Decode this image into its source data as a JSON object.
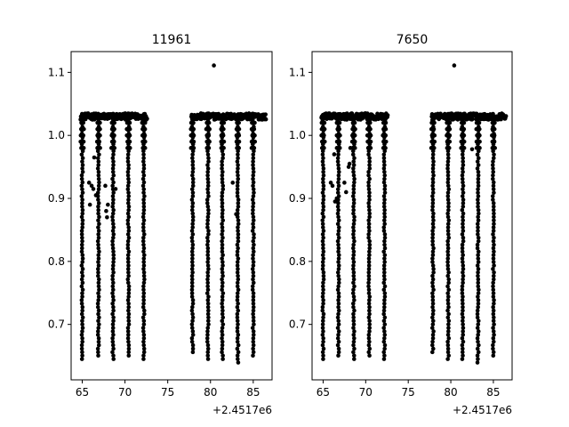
{
  "chart_data": [
    {
      "type": "scatter",
      "title": "11961",
      "offset_text": "+2.4517e6",
      "x_offset": 2451700,
      "xlim": [
        63.7,
        87.2
      ],
      "ylim": [
        0.612,
        1.133
      ],
      "xticks": [
        65,
        70,
        75,
        80,
        85
      ],
      "xtick_labels": [
        "65",
        "70",
        "75",
        "80",
        "85"
      ],
      "yticks": [
        0.7,
        0.8,
        0.9,
        1.0,
        1.1
      ],
      "ytick_labels": [
        "0.7",
        "0.8",
        "0.9",
        "1.0",
        "1.1"
      ],
      "marker_color": "#000000",
      "baseline_flux": 1.03,
      "segments": [
        [
          64.8,
          72.6
        ],
        [
          77.8,
          86.5
        ]
      ],
      "eclipses": [
        {
          "x": 65.0,
          "min": 0.643
        },
        {
          "x": 66.9,
          "min": 0.648
        },
        {
          "x": 68.6,
          "min": 0.642
        },
        {
          "x": 70.4,
          "min": 0.648
        },
        {
          "x": 72.2,
          "min": 0.64
        },
        {
          "x": 77.9,
          "min": 0.655
        },
        {
          "x": 79.7,
          "min": 0.64
        },
        {
          "x": 81.4,
          "min": 0.643
        },
        {
          "x": 83.2,
          "min": 0.637
        },
        {
          "x": 85.0,
          "min": 0.647
        }
      ],
      "extra_points": [
        {
          "x": 80.4,
          "y": 1.111
        },
        {
          "x": 65.8,
          "y": 0.925
        },
        {
          "x": 66.1,
          "y": 0.92
        },
        {
          "x": 66.3,
          "y": 0.915
        },
        {
          "x": 65.9,
          "y": 0.89
        },
        {
          "x": 66.4,
          "y": 0.965
        },
        {
          "x": 66.6,
          "y": 0.905
        },
        {
          "x": 67.7,
          "y": 0.92
        },
        {
          "x": 67.9,
          "y": 0.87
        },
        {
          "x": 68.0,
          "y": 0.89
        },
        {
          "x": 67.8,
          "y": 0.88
        },
        {
          "x": 82.6,
          "y": 0.925
        },
        {
          "x": 83.0,
          "y": 0.875
        },
        {
          "x": 68.9,
          "y": 0.915
        }
      ]
    },
    {
      "type": "scatter",
      "title": "7650",
      "offset_text": "+2.4517e6",
      "x_offset": 2451700,
      "xlim": [
        63.7,
        87.2
      ],
      "ylim": [
        0.612,
        1.133
      ],
      "xticks": [
        65,
        70,
        75,
        80,
        85
      ],
      "xtick_labels": [
        "65",
        "70",
        "75",
        "80",
        "85"
      ],
      "yticks": [
        0.7,
        0.8,
        0.9,
        1.0,
        1.1
      ],
      "ytick_labels": [
        "0.7",
        "0.8",
        "0.9",
        "1.0",
        "1.1"
      ],
      "marker_color": "#000000",
      "baseline_flux": 1.03,
      "segments": [
        [
          64.8,
          72.6
        ],
        [
          77.8,
          86.5
        ]
      ],
      "eclipses": [
        {
          "x": 65.0,
          "min": 0.643
        },
        {
          "x": 66.8,
          "min": 0.648
        },
        {
          "x": 68.6,
          "min": 0.642
        },
        {
          "x": 70.4,
          "min": 0.647
        },
        {
          "x": 72.2,
          "min": 0.64
        },
        {
          "x": 77.9,
          "min": 0.655
        },
        {
          "x": 79.7,
          "min": 0.64
        },
        {
          "x": 81.4,
          "min": 0.643
        },
        {
          "x": 83.2,
          "min": 0.637
        },
        {
          "x": 85.0,
          "min": 0.647
        }
      ],
      "extra_points": [
        {
          "x": 80.4,
          "y": 1.111
        },
        {
          "x": 66.7,
          "y": 1.0
        },
        {
          "x": 66.3,
          "y": 0.97
        },
        {
          "x": 65.9,
          "y": 0.925
        },
        {
          "x": 66.1,
          "y": 0.92
        },
        {
          "x": 66.6,
          "y": 0.9
        },
        {
          "x": 66.4,
          "y": 0.895
        },
        {
          "x": 67.5,
          "y": 0.925
        },
        {
          "x": 67.7,
          "y": 0.91
        },
        {
          "x": 68.1,
          "y": 0.955
        },
        {
          "x": 68.2,
          "y": 0.98
        },
        {
          "x": 82.5,
          "y": 0.978
        },
        {
          "x": 68.0,
          "y": 0.95
        }
      ]
    }
  ]
}
